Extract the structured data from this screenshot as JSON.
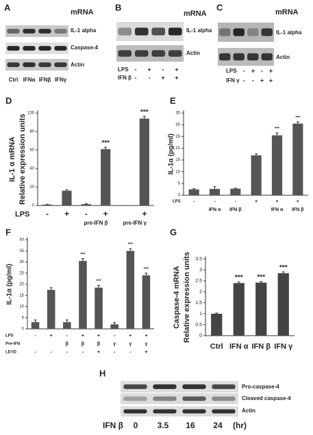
{
  "panels": {
    "A": {
      "label": "A",
      "heading": "mRNA",
      "rows": [
        "IL-1 alpha",
        "Caspase-4",
        "Actin"
      ],
      "lanes": [
        "Ctrl",
        "IFNα",
        "IFNβ",
        "IFNγ"
      ]
    },
    "B": {
      "label": "B",
      "heading": "mRNA",
      "rows": [
        "IL-1 alpha",
        "Actin"
      ],
      "conditions": [
        {
          "name": "LPS",
          "signs": [
            "-",
            "+",
            "-",
            "+"
          ]
        },
        {
          "name": "IFN β",
          "signs": [
            "-",
            "-",
            "+",
            "+"
          ]
        }
      ]
    },
    "C": {
      "label": "C",
      "heading": "mRNA",
      "rows": [
        "IL-1 alpha",
        "Actin"
      ],
      "conditions": [
        {
          "name": "LPS",
          "signs": [
            "-",
            "+",
            "-",
            "+"
          ]
        },
        {
          "name": "IFN γ",
          "signs": [
            "-",
            "-",
            "+",
            "+"
          ]
        }
      ]
    },
    "H": {
      "label": "H",
      "rows": [
        "Pro-caspase-4",
        "Cleaved caspase-4",
        "Actin"
      ],
      "time_label": "IFN β",
      "times": [
        0,
        3.5,
        16,
        24
      ],
      "unit": "(hr)"
    }
  },
  "chart_data": [
    {
      "type": "bar",
      "panel_label": "D",
      "ylabel": [
        "IL-1 α mRNA",
        "Relative expression units"
      ],
      "color": "#555555",
      "values": [
        1,
        16,
        1.5,
        61,
        0,
        94
      ],
      "errors": [
        0.3,
        1,
        0.5,
        2,
        0,
        2.5
      ],
      "annotations": [
        null,
        null,
        null,
        "***",
        null,
        "***"
      ],
      "ylim": [
        0,
        100
      ],
      "yticks": [
        0,
        20,
        40,
        60,
        80,
        100
      ],
      "conditions": [
        {
          "name": "LPS",
          "signs": [
            "-",
            "+",
            "-",
            "+",
            null,
            "+"
          ]
        }
      ],
      "groups": [
        {
          "label": "pre-IFN β",
          "bars": [
            2,
            3
          ]
        },
        {
          "label": "pre-IFN γ",
          "bars": [
            4,
            5
          ]
        }
      ]
    },
    {
      "type": "bar",
      "panel_label": "E",
      "ylabel": [
        "IL-1α (pg/ml)"
      ],
      "color": "#555555",
      "values": [
        2.5,
        2.7,
        2.8,
        17,
        25.5,
        30.5
      ],
      "errors": [
        0.3,
        1,
        0.2,
        0.6,
        1,
        0.7
      ],
      "annotations": [
        null,
        null,
        null,
        null,
        "***",
        "***"
      ],
      "ylim": [
        0,
        35
      ],
      "yticks": [
        0,
        5,
        10,
        15,
        20,
        25,
        30,
        35
      ],
      "conditions": [
        {
          "name": "LPS",
          "signs": [
            "-",
            "-",
            "-",
            "+",
            "+",
            "+"
          ]
        },
        {
          "name": null,
          "signs": [
            null,
            "IFN α",
            "IFN β",
            null,
            "IFN α",
            "IFN β"
          ]
        }
      ]
    },
    {
      "type": "bar",
      "panel_label": "F",
      "ylabel": [
        "IL-1α (pg/ml)"
      ],
      "color": "#555555",
      "values": [
        3,
        17.5,
        3,
        30.5,
        18.5,
        2,
        35,
        24
      ],
      "errors": [
        1,
        1,
        1,
        1,
        1,
        0.8,
        1,
        1
      ],
      "annotations": [
        null,
        null,
        null,
        "***",
        "***",
        null,
        "***",
        "***"
      ],
      "ylim": [
        0,
        40
      ],
      "yticks": [
        0,
        5,
        10,
        15,
        20,
        25,
        30,
        35,
        40
      ],
      "conditions": [
        {
          "name": "LPS",
          "signs": [
            "-",
            "+",
            "-",
            "+",
            "+",
            "-",
            "+",
            "+"
          ]
        },
        {
          "name": "Pre-IFN",
          "signs": [
            null,
            null,
            "β",
            "β",
            "β",
            "γ",
            "γ",
            "γ"
          ]
        },
        {
          "name": "LEVD",
          "signs": [
            "-",
            "-",
            "-",
            "-",
            "+",
            "-",
            "-",
            "+"
          ]
        }
      ]
    },
    {
      "type": "bar",
      "panel_label": "G",
      "ylabel": [
        "Caspase-4 mRNA",
        "Relative expression units"
      ],
      "color": "#444444",
      "categories": [
        "Ctrl",
        "IFN α",
        "IFN β",
        "IFN γ"
      ],
      "values": [
        1,
        2.4,
        2.42,
        2.85
      ],
      "errors": [
        0.03,
        0.05,
        0.05,
        0.06
      ],
      "annotations": [
        null,
        "***",
        "***",
        "***"
      ],
      "ylim": [
        0,
        3.5
      ],
      "yticks": [
        0,
        0.5,
        1,
        1.5,
        2,
        2.5,
        3,
        3.5
      ]
    }
  ]
}
